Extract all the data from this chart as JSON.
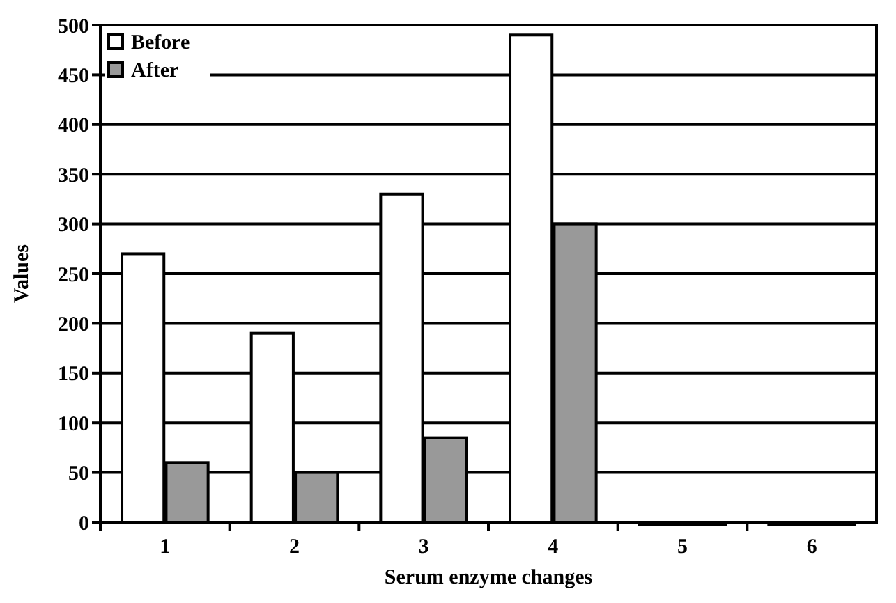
{
  "chart_data": {
    "type": "bar",
    "xlabel": "Serum enzyme changes",
    "ylabel": "Values",
    "categories": [
      "1",
      "2",
      "3",
      "4",
      "5",
      "6"
    ],
    "series": [
      {
        "name": "Before",
        "color": "#ffffff",
        "values": [
          270,
          190,
          330,
          490,
          0,
          0
        ]
      },
      {
        "name": "After",
        "color": "#999999",
        "values": [
          60,
          50,
          85,
          300,
          0,
          0
        ]
      }
    ],
    "ylim": [
      0,
      500
    ],
    "yticks": [
      0,
      50,
      100,
      150,
      200,
      250,
      300,
      350,
      400,
      450,
      500
    ],
    "grid": "y",
    "legend": "top left"
  }
}
